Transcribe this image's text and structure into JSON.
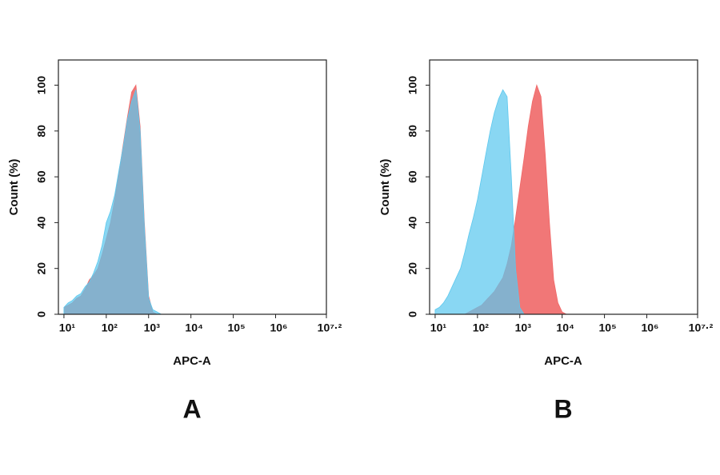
{
  "chart_data": [
    {
      "type": "area",
      "label": "A",
      "xlabel": "APC-A",
      "ylabel": "Count (%)",
      "log_x": true,
      "xlim": [
        7.4,
        15848932
      ],
      "ylim": [
        0,
        111
      ],
      "xticks": [
        {
          "value": 10,
          "label": "10¹"
        },
        {
          "value": 100,
          "label": "10²"
        },
        {
          "value": 1000,
          "label": "10³"
        },
        {
          "value": 10000,
          "label": "10⁴"
        },
        {
          "value": 100000,
          "label": "10⁵"
        },
        {
          "value": 1000000,
          "label": "10⁶"
        },
        {
          "value": 15848932,
          "label": "10⁷·²"
        }
      ],
      "yticks": [
        0,
        20,
        40,
        60,
        80,
        100
      ],
      "x": [
        10,
        12.6,
        15.8,
        20,
        25.1,
        31.6,
        39.8,
        50.1,
        63.1,
        79.4,
        100,
        126,
        158,
        200,
        251,
        316,
        398,
        501,
        631,
        794,
        1000,
        1259,
        1585,
        1995,
        2512,
        3162,
        3981,
        5012,
        6310,
        7943,
        10000,
        12589,
        15849
      ],
      "series": [
        {
          "color": "#f06868",
          "values": [
            3,
            4,
            5,
            7,
            8,
            11,
            15,
            17,
            20,
            26,
            33,
            40,
            50,
            62,
            74,
            86,
            97,
            100,
            82,
            40,
            8,
            1,
            0,
            0,
            0,
            0,
            0,
            0,
            0,
            0,
            0,
            0,
            0
          ]
        },
        {
          "color": "#5cc8ee",
          "values": [
            3,
            5,
            6,
            8,
            9,
            12,
            14,
            18,
            23,
            30,
            40,
            45,
            52,
            63,
            73,
            85,
            93,
            98,
            80,
            38,
            7,
            2,
            1,
            0,
            0,
            0,
            0,
            0,
            0,
            0,
            0,
            0,
            0
          ]
        }
      ]
    },
    {
      "type": "area",
      "label": "B",
      "xlabel": "APC-A",
      "ylabel": "Count (%)",
      "log_x": true,
      "xlim": [
        7.4,
        15848932
      ],
      "ylim": [
        0,
        111
      ],
      "xticks": [
        {
          "value": 10,
          "label": "10¹"
        },
        {
          "value": 100,
          "label": "10²"
        },
        {
          "value": 1000,
          "label": "10³"
        },
        {
          "value": 10000,
          "label": "10⁴"
        },
        {
          "value": 100000,
          "label": "10⁵"
        },
        {
          "value": 1000000,
          "label": "10⁶"
        },
        {
          "value": 15848932,
          "label": "10⁷·²"
        }
      ],
      "yticks": [
        0,
        20,
        40,
        60,
        80,
        100
      ],
      "x": [
        10,
        12.6,
        15.8,
        20,
        25.1,
        31.6,
        39.8,
        50.1,
        63.1,
        79.4,
        100,
        126,
        158,
        200,
        251,
        316,
        398,
        501,
        631,
        794,
        1000,
        1259,
        1585,
        1995,
        2512,
        3162,
        3981,
        5012,
        6310,
        7943,
        10000,
        12589,
        15849
      ],
      "series": [
        {
          "color": "#f06868",
          "values": [
            0,
            0,
            0,
            0,
            0,
            0,
            0,
            0,
            1,
            2,
            3,
            4,
            6,
            8,
            10,
            13,
            16,
            22,
            30,
            42,
            55,
            68,
            82,
            93,
            100,
            95,
            70,
            40,
            15,
            5,
            1,
            0,
            0
          ]
        },
        {
          "color": "#5cc8ee",
          "values": [
            2,
            3,
            5,
            8,
            12,
            16,
            20,
            27,
            35,
            42,
            50,
            60,
            70,
            80,
            88,
            94,
            98,
            95,
            60,
            20,
            3,
            0,
            0,
            0,
            0,
            0,
            0,
            0,
            0,
            0,
            0,
            0,
            0
          ]
        }
      ]
    }
  ]
}
